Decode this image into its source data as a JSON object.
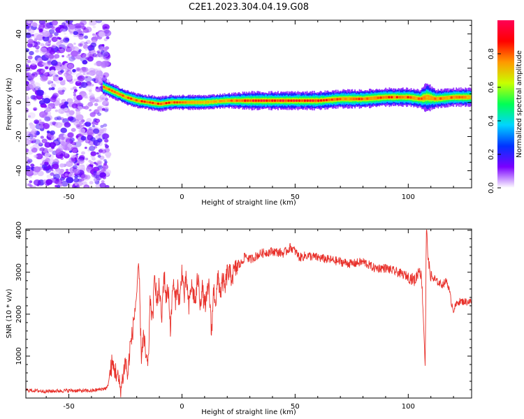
{
  "title": "C2E1.2023.304.04.19.G08",
  "chart_data": [
    {
      "type": "heatmap",
      "xlabel": "Height of straight line (km)",
      "ylabel": "Frequency (Hz)",
      "xlim": [
        -69,
        128
      ],
      "ylim": [
        -50,
        48
      ],
      "xticks": [
        -50,
        0,
        50,
        100
      ],
      "yticks": [
        -40,
        -20,
        0,
        20,
        40
      ],
      "grid": false,
      "noise_region_x": [
        -69,
        -34
      ],
      "ridge": {
        "x": [
          -35,
          -30,
          -25,
          -20,
          -15,
          -10,
          -5,
          0,
          10,
          20,
          30,
          40,
          50,
          60,
          70,
          80,
          90,
          100,
          105,
          108,
          112,
          120,
          128
        ],
        "freq": [
          9,
          6,
          3,
          1,
          0,
          -1,
          0,
          0,
          0,
          1,
          1,
          1,
          1,
          1,
          2,
          2,
          3,
          3,
          2,
          3,
          2,
          3,
          3
        ],
        "width": [
          4,
          4,
          4,
          4,
          4,
          4,
          4,
          4,
          4,
          4,
          5,
          5,
          5,
          5,
          5,
          5,
          5,
          5,
          5,
          8,
          5,
          5,
          5
        ],
        "core_amplitude": [
          0.85,
          0.85,
          0.8,
          0.85,
          0.9,
          0.85,
          0.85,
          0.8,
          0.75,
          0.8,
          0.95,
          0.95,
          0.95,
          0.95,
          0.8,
          0.85,
          0.85,
          0.85,
          0.8,
          0.75,
          0.8,
          0.8,
          0.75
        ]
      },
      "colorbar": {
        "label": "Normalized spectral amplitude",
        "ticks": [
          "0.0",
          "0.2",
          "0.4",
          "0.6",
          "0.8"
        ],
        "range": [
          0,
          1
        ],
        "colors": [
          "#ffffff",
          "#7a00ff",
          "#0033ff",
          "#00d5ff",
          "#00ff55",
          "#c8ff00",
          "#ff9900",
          "#ff0000",
          "#ff0055"
        ]
      }
    },
    {
      "type": "line",
      "xlabel": "Height of straight line (km)",
      "ylabel": "SNR (10 * v/v)",
      "xlim": [
        -69,
        128
      ],
      "ylim": [
        0,
        4030
      ],
      "xticks": [
        -50,
        0,
        50,
        100
      ],
      "yticks": [
        1000,
        2000,
        3000,
        4000
      ],
      "color": "#e8302a",
      "grid": false,
      "series": [
        {
          "x": [
            -69,
            -60,
            -50,
            -40,
            -33,
            -31,
            -29,
            -27,
            -25,
            -24,
            -23,
            -22,
            -21,
            -20,
            -19,
            -18,
            -17,
            -16,
            -15,
            -14,
            -13,
            -12,
            -11,
            -10,
            -9,
            -8,
            -7,
            -6,
            -5,
            -4,
            -3,
            -2,
            -1,
            0,
            1,
            2,
            3,
            4,
            5,
            6,
            7,
            8,
            9,
            10,
            11,
            12,
            13,
            14,
            15,
            16,
            17,
            18,
            19,
            20,
            22,
            24,
            26,
            28,
            30,
            35,
            40,
            45,
            48,
            50,
            52,
            55,
            60,
            65,
            70,
            75,
            80,
            85,
            90,
            95,
            100,
            103,
            105,
            106,
            107,
            107.5,
            108,
            109,
            110,
            112,
            115,
            117,
            118,
            119,
            120,
            122,
            125,
            128
          ],
          "values": [
            190,
            160,
            180,
            170,
            240,
            800,
            600,
            200,
            900,
            500,
            1200,
            1500,
            2000,
            2500,
            3100,
            1000,
            1500,
            1000,
            700,
            2400,
            1800,
            3000,
            2200,
            2700,
            1800,
            3000,
            2400,
            2600,
            1600,
            2800,
            2300,
            2700,
            2200,
            3100,
            2400,
            2900,
            2100,
            2700,
            2500,
            2300,
            2900,
            2300,
            2600,
            2200,
            2400,
            2700,
            1500,
            2600,
            2300,
            2900,
            2500,
            2800,
            2600,
            3000,
            2900,
            3100,
            3200,
            3400,
            3300,
            3450,
            3500,
            3450,
            3600,
            3500,
            3350,
            3400,
            3350,
            3300,
            3250,
            3200,
            3250,
            3100,
            3100,
            3000,
            2900,
            2800,
            3100,
            2800,
            1500,
            700,
            4050,
            3200,
            2900,
            2800,
            2700,
            2800,
            2600,
            2300,
            2100,
            2300,
            2300,
            2300
          ]
        }
      ]
    }
  ]
}
